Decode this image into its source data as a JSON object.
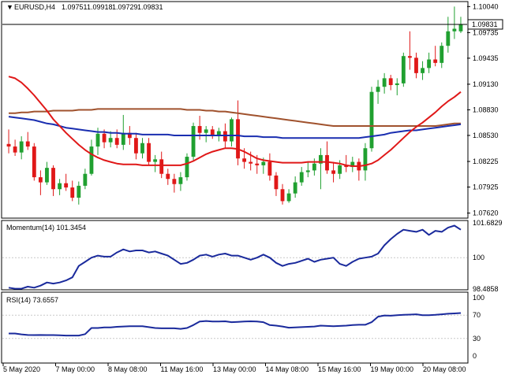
{
  "header": {
    "symbol": "EURUSD,H4",
    "open": "1.09751",
    "high": "1.09918",
    "low": "1.09729",
    "close": "1.09831"
  },
  "price_axis": {
    "ticks": [
      "1.10040",
      "1.09735",
      "1.09435",
      "1.09130",
      "1.08830",
      "1.08530",
      "1.08225",
      "1.07925",
      "1.07620"
    ],
    "current_price": "1.09831"
  },
  "momentum": {
    "label": "Momentum(14) 101.3454",
    "ticks": [
      "101.6829",
      "100",
      "98.4858"
    ]
  },
  "rsi": {
    "label": "RSI(14) 73.6557",
    "ticks": [
      "100",
      "70",
      "30",
      "0"
    ]
  },
  "time_axis": [
    "5 May 2020",
    "7 May 00:00",
    "8 May 08:00",
    "11 May 16:00",
    "13 May 00:00",
    "14 May 08:00",
    "15 May 16:00",
    "19 May 00:00",
    "20 May 08:00"
  ],
  "colors": {
    "bull": "#20a030",
    "bear": "#e01818",
    "ma_fast": "#e01818",
    "ma_mid": "#1a2eb0",
    "ma_slow": "#a0522d",
    "indicator": "#1a2a9c",
    "grid": "#c8c8c8",
    "axis": "#000000"
  },
  "chart_data": {
    "type": "candlestick",
    "y_range": [
      1.0757,
      1.1008
    ],
    "candles": [
      [
        1.0843,
        1.086,
        1.0832,
        1.084
      ],
      [
        1.084,
        1.0848,
        1.0829,
        1.0833
      ],
      [
        1.0833,
        1.0852,
        1.0825,
        1.0846
      ],
      [
        1.0846,
        1.0857,
        1.0836,
        1.084
      ],
      [
        1.084,
        1.0844,
        1.08,
        1.0804
      ],
      [
        1.0804,
        1.0812,
        1.0783,
        1.0798
      ],
      [
        1.0798,
        1.0822,
        1.0795,
        1.0815
      ],
      [
        1.0815,
        1.0818,
        1.0782,
        1.079
      ],
      [
        1.079,
        1.0802,
        1.0783,
        1.0797
      ],
      [
        1.0797,
        1.0808,
        1.0788,
        1.0792
      ],
      [
        1.0792,
        1.08,
        1.0776,
        1.078
      ],
      [
        1.078,
        1.0799,
        1.0772,
        1.0794
      ],
      [
        1.0794,
        1.0814,
        1.079,
        1.0808
      ],
      [
        1.0808,
        1.0848,
        1.0806,
        1.084
      ],
      [
        1.084,
        1.0862,
        1.083,
        1.0855
      ],
      [
        1.0855,
        1.086,
        1.0838,
        1.0845
      ],
      [
        1.0845,
        1.0858,
        1.0839,
        1.085
      ],
      [
        1.085,
        1.086,
        1.0838,
        1.0842
      ],
      [
        1.0842,
        1.0877,
        1.0836,
        1.0856
      ],
      [
        1.0856,
        1.0864,
        1.0842,
        1.085
      ],
      [
        1.085,
        1.0856,
        1.0825,
        1.0832
      ],
      [
        1.0832,
        1.085,
        1.0826,
        1.0844
      ],
      [
        1.0844,
        1.085,
        1.0818,
        1.0822
      ],
      [
        1.0822,
        1.083,
        1.081,
        1.0825
      ],
      [
        1.0825,
        1.0834,
        1.0803,
        1.0808
      ],
      [
        1.0808,
        1.0814,
        1.0795,
        1.0802
      ],
      [
        1.0802,
        1.0808,
        1.0786,
        1.0796
      ],
      [
        1.0796,
        1.081,
        1.0788,
        1.0804
      ],
      [
        1.0804,
        1.0832,
        1.08,
        1.0828
      ],
      [
        1.0828,
        1.0868,
        1.0824,
        1.0864
      ],
      [
        1.0864,
        1.0876,
        1.0848,
        1.0856
      ],
      [
        1.0856,
        1.0864,
        1.0845,
        1.086
      ],
      [
        1.086,
        1.0864,
        1.0849,
        1.0852
      ],
      [
        1.0852,
        1.0862,
        1.0846,
        1.0858
      ],
      [
        1.0858,
        1.0867,
        1.0838,
        1.0846
      ],
      [
        1.0846,
        1.0874,
        1.084,
        1.0872
      ],
      [
        1.0872,
        1.0894,
        1.0818,
        1.0826
      ],
      [
        1.0826,
        1.0838,
        1.0814,
        1.0822
      ],
      [
        1.0822,
        1.0834,
        1.0812,
        1.082
      ],
      [
        1.082,
        1.083,
        1.0808,
        1.0818
      ],
      [
        1.0818,
        1.0827,
        1.0808,
        1.0822
      ],
      [
        1.0822,
        1.0832,
        1.08,
        1.0806
      ],
      [
        1.0806,
        1.081,
        1.0782,
        1.079
      ],
      [
        1.079,
        1.0796,
        1.0772,
        1.0776
      ],
      [
        1.0776,
        1.079,
        1.0774,
        1.0785
      ],
      [
        1.0785,
        1.0805,
        1.078,
        1.0798
      ],
      [
        1.0798,
        1.0816,
        1.0794,
        1.081
      ],
      [
        1.081,
        1.0822,
        1.0804,
        1.0812
      ],
      [
        1.0812,
        1.0826,
        1.0806,
        1.082
      ],
      [
        1.082,
        1.0838,
        1.079,
        1.083
      ],
      [
        1.083,
        1.0846,
        1.0808,
        1.0812
      ],
      [
        1.0812,
        1.0822,
        1.0798,
        1.0808
      ],
      [
        1.0808,
        1.0824,
        1.0802,
        1.0818
      ],
      [
        1.0818,
        1.083,
        1.081,
        1.0816
      ],
      [
        1.0816,
        1.0828,
        1.081,
        1.0822
      ],
      [
        1.0822,
        1.0826,
        1.08,
        1.0812
      ],
      [
        1.0812,
        1.0844,
        1.08,
        1.0838
      ],
      [
        1.0838,
        1.091,
        1.0834,
        1.0904
      ],
      [
        1.0904,
        1.0918,
        1.089,
        1.091
      ],
      [
        1.091,
        1.0926,
        1.0902,
        1.092
      ],
      [
        1.092,
        1.0924,
        1.0906,
        1.0912
      ],
      [
        1.0912,
        1.092,
        1.09,
        1.0914
      ],
      [
        1.0914,
        1.095,
        1.091,
        1.0946
      ],
      [
        1.0946,
        1.0975,
        1.093,
        1.0944
      ],
      [
        1.0944,
        1.095,
        1.092,
        1.0926
      ],
      [
        1.0926,
        1.094,
        1.0918,
        1.0932
      ],
      [
        1.0932,
        1.095,
        1.0926,
        1.0942
      ],
      [
        1.0942,
        1.0958,
        1.0934,
        1.0938
      ],
      [
        1.0938,
        1.0962,
        1.0932,
        1.0958
      ],
      [
        1.0958,
        1.0992,
        1.095,
        1.0975
      ],
      [
        1.0975,
        1.1004,
        1.0966,
        1.0978
      ],
      [
        1.0975,
        1.0992,
        1.0973,
        1.0983
      ]
    ],
    "ma_fast": [
      1.0922,
      1.092,
      1.0915,
      1.0908,
      1.09,
      1.0891,
      1.0882,
      1.0872,
      1.0864,
      1.0856,
      1.0849,
      1.0842,
      1.0836,
      1.0831,
      1.0827,
      1.0824,
      1.0822,
      1.082,
      1.0819,
      1.0819,
      1.0819,
      1.0818,
      1.0818,
      1.0818,
      1.0818,
      1.0818,
      1.0818,
      1.0818,
      1.082,
      1.0823,
      1.0827,
      1.0831,
      1.0834,
      1.0836,
      1.0838,
      1.0838,
      1.0837,
      1.0834,
      1.083,
      1.0826,
      1.0824,
      1.0823,
      1.0822,
      1.0821,
      1.0821,
      1.0821,
      1.0821,
      1.0822,
      1.0822,
      1.0822,
      1.0822,
      1.0821,
      1.082,
      1.0818,
      1.0817,
      1.0817,
      1.0818,
      1.082,
      1.0824,
      1.083,
      1.0836,
      1.0843,
      1.085,
      1.0857,
      1.0863,
      1.0868,
      1.0874,
      1.088,
      1.0887,
      1.0893,
      1.0898,
      1.0904
    ],
    "ma_mid": [
      1.0875,
      1.0874,
      1.0873,
      1.0872,
      1.0871,
      1.0869,
      1.0867,
      1.0866,
      1.0864,
      1.0862,
      1.0861,
      1.086,
      1.0859,
      1.0858,
      1.0857,
      1.0857,
      1.0856,
      1.0856,
      1.0855,
      1.0855,
      1.0855,
      1.0854,
      1.0854,
      1.0854,
      1.0854,
      1.0854,
      1.0853,
      1.0853,
      1.0853,
      1.0853,
      1.0853,
      1.0853,
      1.0853,
      1.0853,
      1.0853,
      1.0853,
      1.0853,
      1.0852,
      1.0852,
      1.0852,
      1.0851,
      1.0851,
      1.0851,
      1.085,
      1.085,
      1.085,
      1.085,
      1.085,
      1.085,
      1.085,
      1.085,
      1.085,
      1.085,
      1.085,
      1.085,
      1.085,
      1.0851,
      1.0852,
      1.0853,
      1.0854,
      1.0856,
      1.0857,
      1.0858,
      1.0859,
      1.0859,
      1.086,
      1.0861,
      1.0862,
      1.0863,
      1.0864,
      1.0865,
      1.0866
    ],
    "ma_slow": [
      1.0879,
      1.0879,
      1.088,
      1.088,
      1.0881,
      1.0881,
      1.0881,
      1.0882,
      1.0882,
      1.0882,
      1.0882,
      1.0883,
      1.0883,
      1.0883,
      1.0884,
      1.0884,
      1.0884,
      1.0884,
      1.0884,
      1.0884,
      1.0884,
      1.0884,
      1.0884,
      1.0884,
      1.0884,
      1.0884,
      1.0884,
      1.0884,
      1.0883,
      1.0883,
      1.0883,
      1.0882,
      1.0882,
      1.0881,
      1.0881,
      1.088,
      1.0879,
      1.0878,
      1.0877,
      1.0876,
      1.0875,
      1.0874,
      1.0873,
      1.0872,
      1.0871,
      1.087,
      1.0869,
      1.0868,
      1.0867,
      1.0866,
      1.0865,
      1.0864,
      1.0864,
      1.0864,
      1.0864,
      1.0864,
      1.0864,
      1.0864,
      1.0864,
      1.0864,
      1.0864,
      1.0864,
      1.0864,
      1.0864,
      1.0864,
      1.0864,
      1.0864,
      1.0864,
      1.0865,
      1.0866,
      1.0867,
      1.0867
    ],
    "momentum_range": [
      98.4858,
      101.6829
    ],
    "momentum": [
      98.55,
      98.5,
      98.5,
      98.6,
      98.55,
      98.65,
      98.8,
      98.75,
      98.8,
      98.9,
      99.05,
      99.6,
      99.8,
      100,
      100.1,
      100.05,
      100.05,
      100.25,
      100.4,
      100.3,
      100.35,
      100.35,
      100.25,
      100.3,
      100.2,
      100.1,
      99.9,
      99.7,
      99.75,
      99.9,
      100.1,
      100.15,
      100.05,
      100.15,
      100.2,
      100.1,
      100.1,
      100.0,
      99.9,
      100.0,
      100.15,
      100.0,
      99.75,
      99.6,
      99.7,
      99.75,
      99.85,
      99.95,
      99.8,
      99.9,
      99.95,
      100.0,
      99.7,
      99.6,
      99.8,
      99.95,
      100.0,
      100.05,
      100.2,
      100.6,
      100.9,
      101.15,
      101.35,
      101.3,
      101.25,
      101.35,
      101.1,
      101.3,
      101.25,
      101.45,
      101.55,
      101.35
    ],
    "rsi_range": [
      0,
      100
    ],
    "rsi": [
      38.5,
      38.5,
      37,
      36,
      35.8,
      36,
      35.8,
      35.8,
      35.5,
      35,
      35,
      35,
      37.5,
      48,
      48,
      49,
      49,
      50,
      50.5,
      51,
      51,
      51,
      49.5,
      48,
      47.5,
      47.5,
      47.5,
      46.5,
      48,
      53,
      59,
      60,
      59,
      59,
      59.5,
      58,
      58.5,
      59,
      59.5,
      59,
      58,
      53,
      52,
      50.5,
      48.5,
      49,
      49.5,
      50,
      50.5,
      52,
      51.5,
      51,
      51.5,
      52,
      53,
      53.5,
      53.5,
      58,
      67.5,
      69.5,
      69,
      70,
      70.5,
      71,
      71.5,
      70,
      70,
      70.5,
      71.5,
      72.5,
      73,
      73.6557
    ]
  }
}
